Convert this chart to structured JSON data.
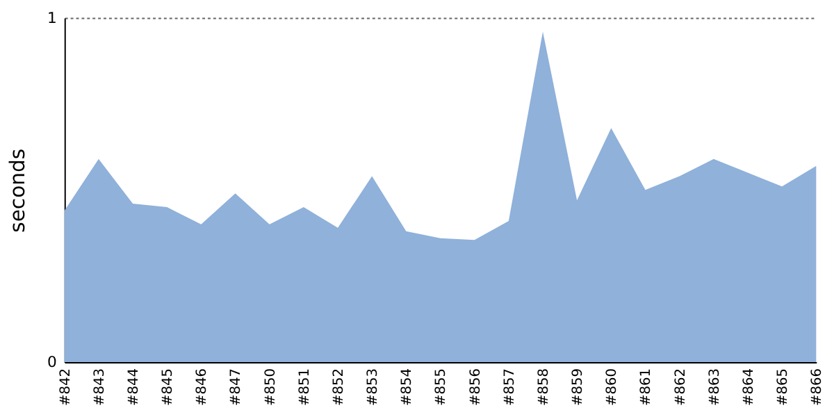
{
  "chart_data": {
    "type": "area",
    "ylabel": "seconds",
    "categories": [
      "#842",
      "#843",
      "#844",
      "#845",
      "#846",
      "#847",
      "#850",
      "#851",
      "#852",
      "#853",
      "#854",
      "#855",
      "#856",
      "#857",
      "#858",
      "#859",
      "#860",
      "#861",
      "#862",
      "#863",
      "#864",
      "#865",
      "#866"
    ],
    "series": [
      {
        "color": "#8fb1da",
        "values": [
          0.44,
          0.59,
          0.46,
          0.45,
          0.4,
          0.49,
          0.4,
          0.45,
          0.39,
          0.54,
          0.38,
          0.36,
          0.355,
          0.41,
          0.96,
          0.47,
          0.68,
          0.5,
          0.54,
          0.59,
          0.55,
          0.51,
          0.57
        ]
      }
    ],
    "ylim": [
      0,
      1
    ],
    "yticks": [
      0,
      1
    ],
    "grid": "y"
  }
}
